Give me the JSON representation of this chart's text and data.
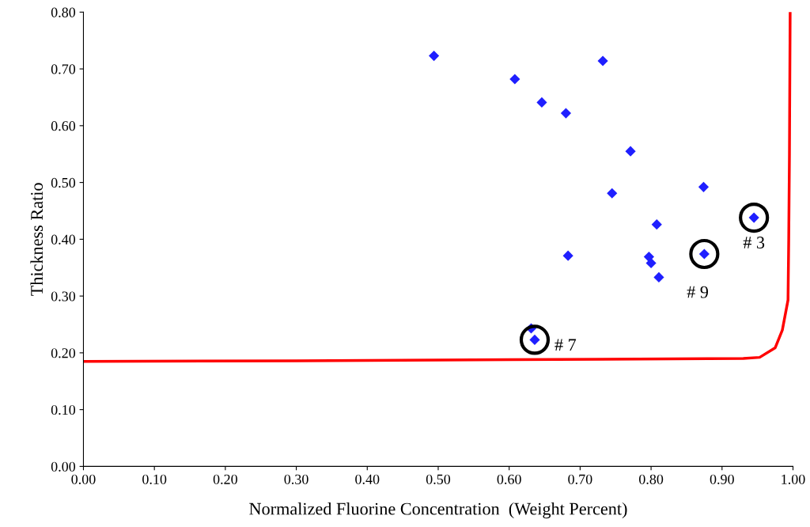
{
  "chart_data": {
    "type": "scatter",
    "xlabel": "Normalized Fluorine Concentration  (Weight Percent)",
    "ylabel": "Thickness Ratio",
    "xlim": [
      0,
      1
    ],
    "ylim": [
      0,
      0.8
    ],
    "xticks": [
      {
        "value": 0,
        "label": "0.00"
      },
      {
        "value": 0.1,
        "label": "0.10"
      },
      {
        "value": 0.2,
        "label": "0.20"
      },
      {
        "value": 0.3,
        "label": "0.30"
      },
      {
        "value": 0.4,
        "label": "0.40"
      },
      {
        "value": 0.5,
        "label": "0.50"
      },
      {
        "value": 0.6,
        "label": "0.60"
      },
      {
        "value": 0.7,
        "label": "0.70"
      },
      {
        "value": 0.8,
        "label": "0.80"
      },
      {
        "value": 0.9,
        "label": "0.90"
      },
      {
        "value": 1,
        "label": "1.00"
      }
    ],
    "yticks": [
      {
        "value": 0,
        "label": "0.00"
      },
      {
        "value": 0.1,
        "label": "0.10"
      },
      {
        "value": 0.2,
        "label": "0.20"
      },
      {
        "value": 0.3,
        "label": "0.30"
      },
      {
        "value": 0.4,
        "label": "0.40"
      },
      {
        "value": 0.5,
        "label": "0.50"
      },
      {
        "value": 0.6,
        "label": "0.60"
      },
      {
        "value": 0.7,
        "label": "0.70"
      },
      {
        "value": 0.8,
        "label": "0.80"
      }
    ],
    "grid": false,
    "legend": false,
    "series": [
      {
        "color": "#1f1fff",
        "marker": "diamond",
        "x": [
          0.494,
          0.608,
          0.646,
          0.68,
          0.732,
          0.771,
          0.874,
          0.745,
          0.808,
          0.945,
          0.875,
          0.683,
          0.797,
          0.8,
          0.811,
          0.631,
          0.636
        ],
        "values": [
          0.723,
          0.682,
          0.641,
          0.622,
          0.714,
          0.555,
          0.492,
          0.481,
          0.426,
          0.438,
          0.374,
          0.371,
          0.369,
          0.358,
          0.333,
          0.243,
          0.223
        ]
      },
      {
        "type": "line",
        "color": "#ff0000",
        "marker": "none",
        "line_style": "solid",
        "x": [
          0,
          0.3,
          0.6,
          0.93,
          0.953,
          0.975,
          0.985,
          0.993,
          0.994,
          0.995,
          0.996
        ],
        "values": [
          0.185,
          0.186,
          0.188,
          0.19,
          0.192,
          0.209,
          0.24,
          0.293,
          0.4,
          0.55,
          0.8
        ]
      }
    ],
    "annotations": [
      {
        "text": "# 3",
        "x": 0.945,
        "y": 0.438
      },
      {
        "text": "# 9",
        "x": 0.875,
        "y": 0.374
      },
      {
        "text": "# 7",
        "x": 0.636,
        "y": 0.223
      }
    ]
  }
}
